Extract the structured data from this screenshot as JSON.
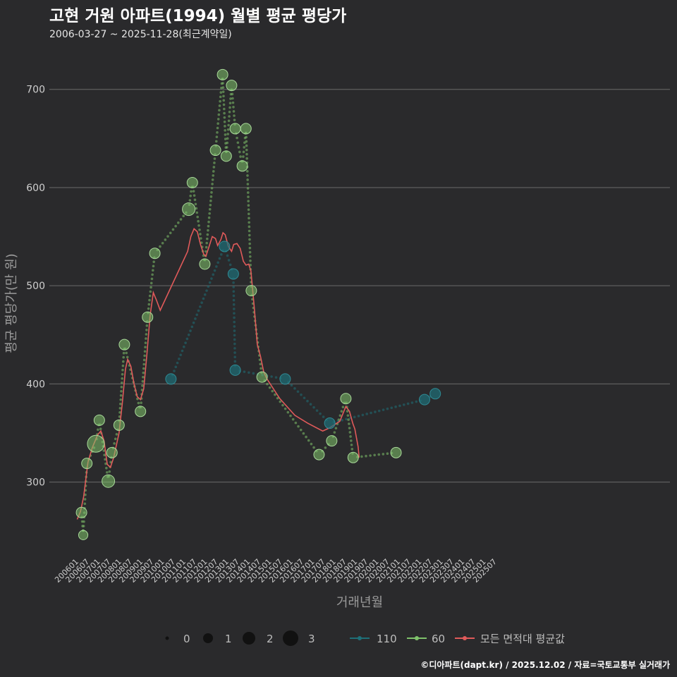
{
  "chart_data": {
    "type": "line",
    "title": "고현 거원 아파트(1994) 월별 평균 평당가",
    "subtitle": "2006-03-27 ~ 2025-11-28(최근계약일)",
    "xlabel": "거래년월",
    "ylabel": "평균 평당가(만 원)",
    "ylim": [
      225,
      735
    ],
    "yticks": [
      300,
      400,
      500,
      600,
      700
    ],
    "x_categories": [
      "200601",
      "200607",
      "200701",
      "200707",
      "200801",
      "200807",
      "200901",
      "200907",
      "201001",
      "201007",
      "201101",
      "201107",
      "201201",
      "201207",
      "201301",
      "201307",
      "201401",
      "201407",
      "201501",
      "201507",
      "201601",
      "201607",
      "201701",
      "201707",
      "201801",
      "201807",
      "201901",
      "201907",
      "202001",
      "202007",
      "202101",
      "202107",
      "202201",
      "202207",
      "202301",
      "202307",
      "202401",
      "202407",
      "202501",
      "202507"
    ],
    "size_legend": {
      "labels": [
        "0",
        "1",
        "2",
        "3"
      ]
    },
    "series": [
      {
        "name": "110",
        "color": "#1e6f78",
        "points": [
          {
            "t": 2010.42,
            "v": 405,
            "size": 1.5
          },
          {
            "t": 2012.92,
            "v": 540,
            "size": 1.5
          },
          {
            "t": 2013.33,
            "v": 512,
            "size": 1.5
          },
          {
            "t": 2013.42,
            "v": 414,
            "size": 1.5
          },
          {
            "t": 2015.75,
            "v": 405,
            "size": 1.5
          },
          {
            "t": 2017.83,
            "v": 360,
            "size": 1.5
          },
          {
            "t": 2022.25,
            "v": 384,
            "size": 1.5
          },
          {
            "t": 2022.75,
            "v": 390,
            "size": 1.5
          }
        ]
      },
      {
        "name": "60",
        "color": "#7fc26b",
        "points": [
          {
            "t": 2006.25,
            "v": 269,
            "size": 1.5
          },
          {
            "t": 2006.33,
            "v": 246,
            "size": 1.2
          },
          {
            "t": 2006.5,
            "v": 319,
            "size": 1.5
          },
          {
            "t": 2006.92,
            "v": 339,
            "size": 3
          },
          {
            "t": 2007.08,
            "v": 363,
            "size": 1.5
          },
          {
            "t": 2007.5,
            "v": 301,
            "size": 2
          },
          {
            "t": 2007.67,
            "v": 330,
            "size": 1.5
          },
          {
            "t": 2008.0,
            "v": 358,
            "size": 1.5
          },
          {
            "t": 2008.25,
            "v": 440,
            "size": 1.5
          },
          {
            "t": 2009.0,
            "v": 372,
            "size": 1.5
          },
          {
            "t": 2009.33,
            "v": 468,
            "size": 1.5
          },
          {
            "t": 2009.67,
            "v": 533,
            "size": 1.5
          },
          {
            "t": 2011.25,
            "v": 578,
            "size": 2
          },
          {
            "t": 2011.42,
            "v": 605,
            "size": 1.5
          },
          {
            "t": 2012.0,
            "v": 522,
            "size": 1.5
          },
          {
            "t": 2012.5,
            "v": 638,
            "size": 1.5
          },
          {
            "t": 2012.83,
            "v": 715,
            "size": 1.5
          },
          {
            "t": 2013.0,
            "v": 632,
            "size": 1.5
          },
          {
            "t": 2013.25,
            "v": 704,
            "size": 1.5
          },
          {
            "t": 2013.42,
            "v": 660,
            "size": 1.5
          },
          {
            "t": 2013.75,
            "v": 622,
            "size": 1.5
          },
          {
            "t": 2013.92,
            "v": 660,
            "size": 1.5
          },
          {
            "t": 2014.17,
            "v": 495,
            "size": 1.5
          },
          {
            "t": 2014.67,
            "v": 407,
            "size": 1.5
          },
          {
            "t": 2017.33,
            "v": 328,
            "size": 1.5
          },
          {
            "t": 2017.92,
            "v": 342,
            "size": 1.5
          },
          {
            "t": 2018.58,
            "v": 385,
            "size": 1.5
          },
          {
            "t": 2018.92,
            "v": 325,
            "size": 1.5
          },
          {
            "t": 2020.92,
            "v": 330,
            "size": 1.5
          }
        ]
      },
      {
        "name": "모든 면적대 평균값",
        "color": "#e05a5a",
        "points": [
          {
            "t": 2006.05,
            "v": 262
          },
          {
            "t": 2006.2,
            "v": 270
          },
          {
            "t": 2006.35,
            "v": 285
          },
          {
            "t": 2006.55,
            "v": 320
          },
          {
            "t": 2006.75,
            "v": 335
          },
          {
            "t": 2007.0,
            "v": 348
          },
          {
            "t": 2007.15,
            "v": 352
          },
          {
            "t": 2007.3,
            "v": 342
          },
          {
            "t": 2007.45,
            "v": 318
          },
          {
            "t": 2007.6,
            "v": 315
          },
          {
            "t": 2007.75,
            "v": 325
          },
          {
            "t": 2008.0,
            "v": 350
          },
          {
            "t": 2008.15,
            "v": 380
          },
          {
            "t": 2008.3,
            "v": 415
          },
          {
            "t": 2008.4,
            "v": 425
          },
          {
            "t": 2008.55,
            "v": 418
          },
          {
            "t": 2008.7,
            "v": 400
          },
          {
            "t": 2008.85,
            "v": 387
          },
          {
            "t": 2009.0,
            "v": 384
          },
          {
            "t": 2009.15,
            "v": 395
          },
          {
            "t": 2009.3,
            "v": 430
          },
          {
            "t": 2009.45,
            "v": 470
          },
          {
            "t": 2009.6,
            "v": 493
          },
          {
            "t": 2009.75,
            "v": 485
          },
          {
            "t": 2009.92,
            "v": 475
          },
          {
            "t": 2011.2,
            "v": 535
          },
          {
            "t": 2011.35,
            "v": 550
          },
          {
            "t": 2011.5,
            "v": 558
          },
          {
            "t": 2011.65,
            "v": 555
          },
          {
            "t": 2011.8,
            "v": 542
          },
          {
            "t": 2011.95,
            "v": 532
          },
          {
            "t": 2012.05,
            "v": 530
          },
          {
            "t": 2012.2,
            "v": 540
          },
          {
            "t": 2012.35,
            "v": 550
          },
          {
            "t": 2012.5,
            "v": 548
          },
          {
            "t": 2012.6,
            "v": 541
          },
          {
            "t": 2012.75,
            "v": 547
          },
          {
            "t": 2012.85,
            "v": 554
          },
          {
            "t": 2012.95,
            "v": 552
          },
          {
            "t": 2013.1,
            "v": 540
          },
          {
            "t": 2013.25,
            "v": 535
          },
          {
            "t": 2013.35,
            "v": 542
          },
          {
            "t": 2013.5,
            "v": 543
          },
          {
            "t": 2013.65,
            "v": 538
          },
          {
            "t": 2013.8,
            "v": 525
          },
          {
            "t": 2013.92,
            "v": 521
          },
          {
            "t": 2014.05,
            "v": 522
          },
          {
            "t": 2014.15,
            "v": 515
          },
          {
            "t": 2014.3,
            "v": 480
          },
          {
            "t": 2014.45,
            "v": 440
          },
          {
            "t": 2014.6,
            "v": 428
          },
          {
            "t": 2014.75,
            "v": 412
          },
          {
            "t": 2014.9,
            "v": 405
          },
          {
            "t": 2015.5,
            "v": 385
          },
          {
            "t": 2016.2,
            "v": 368
          },
          {
            "t": 2016.8,
            "v": 360
          },
          {
            "t": 2017.5,
            "v": 352
          },
          {
            "t": 2017.8,
            "v": 355
          },
          {
            "t": 2018.3,
            "v": 362
          },
          {
            "t": 2018.58,
            "v": 377
          },
          {
            "t": 2018.75,
            "v": 372
          },
          {
            "t": 2018.9,
            "v": 360
          },
          {
            "t": 2019.0,
            "v": 354
          },
          {
            "t": 2019.15,
            "v": 336
          },
          {
            "t": 2019.2,
            "v": 325
          }
        ]
      }
    ]
  },
  "legend": {
    "size_items": [
      "0",
      "1",
      "2",
      "3"
    ],
    "line_items": [
      "110",
      "60",
      "모든 면적대 평균값"
    ]
  },
  "caption": "©디아파트(dapt.kr) / 2025.12.02 / 자료=국토교통부 실거래가"
}
